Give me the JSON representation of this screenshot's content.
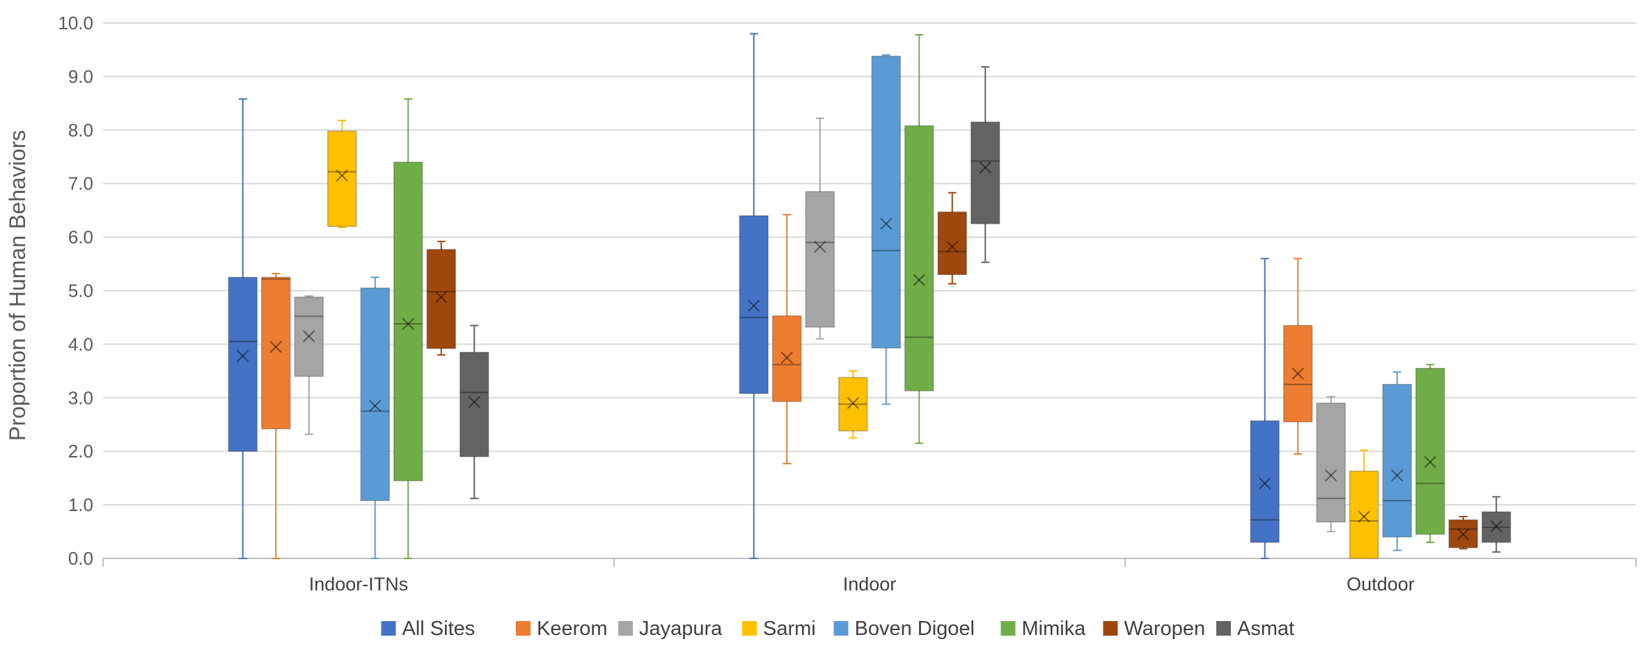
{
  "chart_data": {
    "type": "box",
    "title": "",
    "xlabel": "",
    "ylabel": "Proportion of Human Behaviors",
    "ylim": [
      0,
      10
    ],
    "yticks": [
      "0.0",
      "1.0",
      "2.0",
      "3.0",
      "4.0",
      "5.0",
      "6.0",
      "7.0",
      "8.0",
      "9.0",
      "10.0"
    ],
    "grid": true,
    "legend_position": "bottom",
    "categories": [
      "Indoor-ITNs",
      "Indoor",
      "Outdoor"
    ],
    "series": [
      {
        "name": "All Sites",
        "color": "#4472C4",
        "boxes": [
          {
            "min": 0.0,
            "q1": 2.0,
            "median": 4.05,
            "q3": 5.25,
            "max": 8.58,
            "mean": 3.78
          },
          {
            "min": 0.0,
            "q1": 3.08,
            "median": 4.5,
            "q3": 6.4,
            "max": 9.8,
            "mean": 4.72
          },
          {
            "min": 0.0,
            "q1": 0.3,
            "median": 0.72,
            "q3": 2.57,
            "max": 5.6,
            "mean": 1.4
          }
        ]
      },
      {
        "name": "Keerom",
        "color": "#ED7D31",
        "boxes": [
          {
            "min": 0.0,
            "q1": 2.42,
            "median": 5.22,
            "q3": 5.25,
            "max": 5.32,
            "mean": 3.95
          },
          {
            "min": 1.77,
            "q1": 2.93,
            "median": 3.62,
            "q3": 4.53,
            "max": 6.42,
            "mean": 3.75
          },
          {
            "min": 1.95,
            "q1": 2.55,
            "median": 3.25,
            "q3": 4.35,
            "max": 5.6,
            "mean": 3.45
          }
        ]
      },
      {
        "name": "Jayapura",
        "color": "#A5A5A5",
        "boxes": [
          {
            "min": 2.32,
            "q1": 3.4,
            "median": 4.52,
            "q3": 4.88,
            "max": 4.9,
            "mean": 4.15
          },
          {
            "min": 4.1,
            "q1": 4.32,
            "median": 5.9,
            "q3": 6.85,
            "max": 8.22,
            "mean": 5.82
          },
          {
            "min": 0.5,
            "q1": 0.68,
            "median": 1.12,
            "q3": 2.9,
            "max": 3.02,
            "mean": 1.55
          }
        ]
      },
      {
        "name": "Sarmi",
        "color": "#FFC000",
        "boxes": [
          {
            "min": 6.18,
            "q1": 6.2,
            "median": 7.22,
            "q3": 7.98,
            "max": 8.18,
            "mean": 7.15
          },
          {
            "min": 2.25,
            "q1": 2.38,
            "median": 2.88,
            "q3": 3.38,
            "max": 3.5,
            "mean": 2.9
          },
          {
            "min": 0.0,
            "q1": 0.0,
            "median": 0.7,
            "q3": 1.63,
            "max": 2.02,
            "mean": 0.78
          }
        ]
      },
      {
        "name": "Boven Digoel",
        "color": "#5B9BD5",
        "boxes": [
          {
            "min": 0.0,
            "q1": 1.08,
            "median": 2.75,
            "q3": 5.05,
            "max": 5.25,
            "mean": 2.85
          },
          {
            "min": 2.88,
            "q1": 3.93,
            "median": 5.75,
            "q3": 9.38,
            "max": 9.4,
            "mean": 6.25
          },
          {
            "min": 0.15,
            "q1": 0.4,
            "median": 1.08,
            "q3": 3.25,
            "max": 3.48,
            "mean": 1.55
          }
        ]
      },
      {
        "name": "Mimika",
        "color": "#70AD47",
        "boxes": [
          {
            "min": 0.0,
            "q1": 1.45,
            "median": 4.38,
            "q3": 7.4,
            "max": 8.58,
            "mean": 4.38
          },
          {
            "min": 2.15,
            "q1": 3.13,
            "median": 4.13,
            "q3": 8.08,
            "max": 9.78,
            "mean": 5.2
          },
          {
            "min": 0.3,
            "q1": 0.45,
            "median": 1.4,
            "q3": 3.55,
            "max": 3.62,
            "mean": 1.8
          }
        ]
      },
      {
        "name": "Waropen",
        "color": "#9E480E",
        "boxes": [
          {
            "min": 3.8,
            "q1": 3.92,
            "median": 4.98,
            "q3": 5.77,
            "max": 5.92,
            "mean": 4.88
          },
          {
            "min": 5.13,
            "q1": 5.3,
            "median": 5.73,
            "q3": 6.47,
            "max": 6.83,
            "mean": 5.82
          },
          {
            "min": 0.18,
            "q1": 0.2,
            "median": 0.55,
            "q3": 0.72,
            "max": 0.78,
            "mean": 0.45
          }
        ]
      },
      {
        "name": "Asmat",
        "color": "#636363",
        "boxes": [
          {
            "min": 1.12,
            "q1": 1.9,
            "median": 3.1,
            "q3": 3.85,
            "max": 4.35,
            "mean": 2.92
          },
          {
            "min": 5.53,
            "q1": 6.25,
            "median": 7.42,
            "q3": 8.15,
            "max": 9.18,
            "mean": 7.3
          },
          {
            "min": 0.12,
            "q1": 0.3,
            "median": 0.58,
            "q3": 0.87,
            "max": 1.15,
            "mean": 0.6
          }
        ]
      }
    ]
  }
}
